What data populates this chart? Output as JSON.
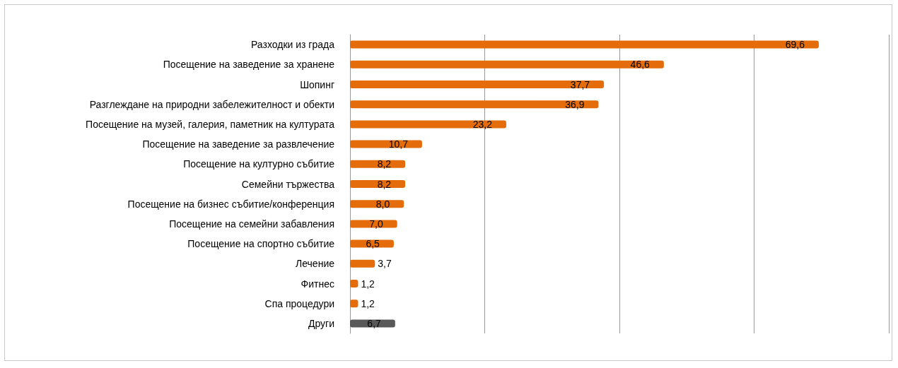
{
  "chart_data": {
    "type": "bar",
    "orientation": "horizontal",
    "categories": [
      "Разходки из града",
      "Посещение на заведение за хранене",
      "Шопинг",
      "Разглеждане на природни забележителност и обекти",
      "Посещение на музей, галерия, паметник на културата",
      "Посещение на заведение за развлечение",
      "Посещение на културно събитие",
      "Семейни тържества",
      "Посещение на бизнес събитие/конференция",
      "Посещение на семейни забавления",
      "Посещение на спортно събитие",
      "Лечение",
      "Фитнес",
      "Спа процедури",
      "Други"
    ],
    "values": [
      69.6,
      46.6,
      37.7,
      36.9,
      23.2,
      10.7,
      8.2,
      8.2,
      8.0,
      7.0,
      6.5,
      3.7,
      1.2,
      1.2,
      6.7
    ],
    "value_labels": [
      "69,6",
      "46,6",
      "37,7",
      "36,9",
      "23,2",
      "10,7",
      "8,2",
      "8,2",
      "8,0",
      "7,0",
      "6,5",
      "3,7",
      "1,2",
      "1,2",
      "6,7"
    ],
    "colors": [
      "#e46c0a",
      "#e46c0a",
      "#e46c0a",
      "#e46c0a",
      "#e46c0a",
      "#e46c0a",
      "#e46c0a",
      "#e46c0a",
      "#e46c0a",
      "#e46c0a",
      "#e46c0a",
      "#e46c0a",
      "#e46c0a",
      "#e46c0a",
      "#595959"
    ],
    "xlim": [
      0,
      80
    ],
    "xticks": [
      {
        "value": 0,
        "label": null
      },
      {
        "value": 20,
        "label": null
      },
      {
        "value": 40,
        "label": null
      },
      {
        "value": 60,
        "label": null
      },
      {
        "value": 80,
        "label": null
      }
    ],
    "tick_labels": "y",
    "grid": "x"
  }
}
